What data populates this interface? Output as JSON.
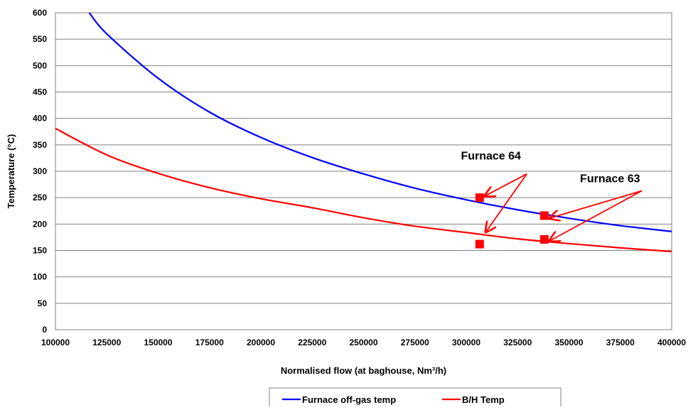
{
  "chart_data": {
    "type": "line",
    "title": "",
    "xlabel": "Normalised flow (at baghouse, Nm³/h)",
    "ylabel": "Temperature (°C)",
    "xlim": [
      100000,
      400000
    ],
    "ylim": [
      0,
      600
    ],
    "x_ticks": [
      100000,
      125000,
      150000,
      175000,
      200000,
      225000,
      250000,
      275000,
      300000,
      325000,
      350000,
      375000,
      400000
    ],
    "y_ticks": [
      0,
      50,
      100,
      150,
      200,
      250,
      300,
      350,
      400,
      450,
      500,
      550,
      600
    ],
    "grid": "horizontal",
    "legend_position": "bottom",
    "series": [
      {
        "name": "Furnace off-gas temp",
        "color": "#0000ff",
        "x": [
          116500,
          125000,
          150000,
          175000,
          200000,
          225000,
          250000,
          275000,
          300000,
          325000,
          350000,
          375000,
          400000
        ],
        "y": [
          600,
          560,
          476,
          412,
          364,
          326,
          295,
          268,
          246,
          227,
          211,
          197,
          186
        ]
      },
      {
        "name": "B/H Temp",
        "color": "#ff0000",
        "x": [
          100000,
          125000,
          150000,
          175000,
          200000,
          225000,
          250000,
          275000,
          300000,
          325000,
          350000,
          375000,
          400000
        ],
        "y": [
          381,
          331,
          296,
          269,
          248,
          231,
          212,
          196,
          184,
          172,
          163,
          155,
          148
        ]
      }
    ],
    "points": [
      {
        "x": 306500,
        "y": 250,
        "color": "#ff0000"
      },
      {
        "x": 306500,
        "y": 162,
        "color": "#ff0000"
      },
      {
        "x": 338000,
        "y": 216,
        "color": "#ff0000"
      },
      {
        "x": 338000,
        "y": 171,
        "color": "#ff0000"
      }
    ],
    "annotations": [
      {
        "text": "Furnace 64",
        "label_x": 312000,
        "label_y": 322,
        "arrow_from": {
          "x": 329500,
          "y": 295
        },
        "arrow_to": [
          {
            "x": 309000,
            "y": 253
          },
          {
            "x": 309500,
            "y": 185
          }
        ]
      },
      {
        "text": "Furnace 63",
        "label_x": 370000,
        "label_y": 279,
        "arrow_from": {
          "x": 385500,
          "y": 263
        },
        "arrow_to": [
          {
            "x": 340500,
            "y": 211
          },
          {
            "x": 340500,
            "y": 168
          }
        ]
      }
    ]
  }
}
